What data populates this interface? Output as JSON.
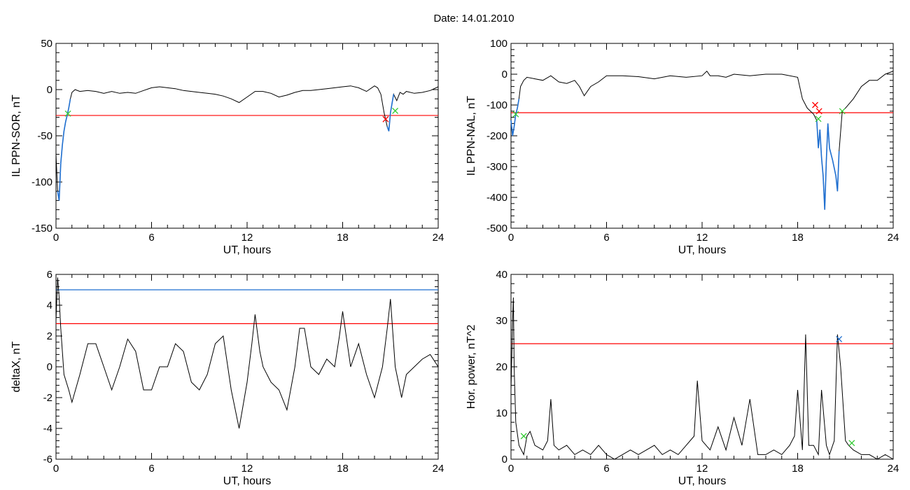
{
  "figure": {
    "title": "Date:  14.01.2010"
  },
  "colors": {
    "axes": "#000000",
    "trace": "#000000",
    "threshold_red": "#ff0000",
    "threshold_blue": "#1f6fd0",
    "highlight_blue": "#1f6fd0",
    "marker_green": "#33cc33",
    "marker_red": "#ff0000"
  },
  "chart_data": [
    {
      "id": "panel-ppn-sor",
      "type": "line",
      "title": "",
      "xlabel": "UT, hours",
      "ylabel": "IL PPN-SOR, nT",
      "xlim": [
        0,
        24
      ],
      "ylim": [
        -150,
        50
      ],
      "xticks": [
        0,
        6,
        12,
        18,
        24
      ],
      "yticks": [
        -150,
        -100,
        -50,
        0,
        50
      ],
      "threshold": [
        {
          "value": -28,
          "color": "red"
        }
      ],
      "series": [
        {
          "x": [
            0.0,
            0.1,
            0.2,
            0.3,
            0.4,
            0.5,
            0.6,
            0.7,
            0.8,
            0.9,
            1.0,
            1.2,
            1.5,
            2.0,
            2.5,
            3.0,
            3.5,
            4.0,
            4.5,
            5.0,
            5.5,
            6.0,
            6.5,
            7.0,
            7.5,
            8.0,
            8.5,
            9.0,
            9.5,
            10.0,
            10.5,
            11.0,
            11.5,
            12.0,
            12.5,
            13.0,
            13.5,
            14.0,
            14.5,
            15.0,
            15.5,
            16.0,
            16.5,
            17.0,
            17.5,
            18.0,
            18.5,
            19.0,
            19.5,
            20.0,
            20.2,
            20.4,
            20.6,
            20.8,
            20.9,
            21.0,
            21.2,
            21.4,
            21.6,
            21.8,
            22.0,
            22.5,
            23.0,
            23.5,
            24.0
          ],
          "y": [
            -70,
            -110,
            -120,
            -80,
            -60,
            -45,
            -35,
            -28,
            -20,
            -10,
            -3,
            0,
            -2,
            -1,
            -2,
            -4,
            -2,
            -4,
            -3,
            -4,
            -1,
            2,
            3,
            2,
            1,
            -1,
            -2,
            -3,
            -4,
            -5,
            -7,
            -10,
            -14,
            -8,
            -2,
            -2,
            -4,
            -8,
            -6,
            -3,
            -1,
            -1,
            0,
            1,
            2,
            3,
            4,
            2,
            -2,
            4,
            2,
            -5,
            -25,
            -40,
            -45,
            -25,
            -5,
            -12,
            -3,
            -5,
            -2,
            -4,
            -3,
            -1,
            3
          ]
        }
      ],
      "highlight_x_ranges": [
        [
          0.1,
          0.9
        ],
        [
          20.8,
          21.3
        ]
      ],
      "markers": [
        {
          "x": 0.75,
          "y": -26,
          "color": "green",
          "symbol": "x"
        },
        {
          "x": 21.3,
          "y": -23,
          "color": "green",
          "symbol": "x"
        },
        {
          "x": 20.7,
          "y": -32,
          "color": "red",
          "symbol": "x"
        }
      ]
    },
    {
      "id": "panel-ppn-nal",
      "type": "line",
      "title": "",
      "xlabel": "UT, hours",
      "ylabel": "IL PPN-NAL, nT",
      "xlim": [
        0,
        24
      ],
      "ylim": [
        -500,
        100
      ],
      "xticks": [
        0,
        6,
        12,
        18,
        24
      ],
      "yticks": [
        -500,
        -400,
        -300,
        -200,
        -100,
        0,
        100
      ],
      "threshold": [
        {
          "value": -125,
          "color": "red"
        }
      ],
      "series": [
        {
          "x": [
            0.0,
            0.1,
            0.2,
            0.3,
            0.4,
            0.5,
            0.6,
            0.8,
            1.0,
            1.5,
            2.0,
            2.5,
            3.0,
            3.5,
            4.0,
            4.3,
            4.6,
            5.0,
            5.5,
            6.0,
            7.0,
            8.0,
            9.0,
            10.0,
            11.0,
            12.0,
            12.3,
            12.5,
            13.0,
            13.5,
            14.0,
            15.0,
            16.0,
            17.0,
            18.0,
            18.3,
            18.6,
            19.0,
            19.2,
            19.3,
            19.4,
            19.5,
            19.6,
            19.7,
            19.8,
            19.9,
            20.0,
            20.2,
            20.4,
            20.5,
            20.6,
            20.8,
            21.0,
            21.5,
            22.0,
            22.5,
            23.0,
            23.5,
            24.0
          ],
          "y": [
            -150,
            -200,
            -170,
            -130,
            -110,
            -80,
            -40,
            -20,
            -10,
            -15,
            -20,
            -5,
            -25,
            -30,
            -20,
            -40,
            -70,
            -40,
            -25,
            -5,
            -5,
            -8,
            -15,
            -5,
            -10,
            -5,
            10,
            -5,
            -5,
            -10,
            0,
            -5,
            0,
            0,
            -10,
            -80,
            -110,
            -130,
            -150,
            -240,
            -180,
            -270,
            -330,
            -440,
            -280,
            -160,
            -240,
            -280,
            -330,
            -380,
            -250,
            -120,
            -110,
            -80,
            -40,
            -20,
            -20,
            0,
            10
          ]
        }
      ],
      "highlight_x_ranges": [
        [
          0.0,
          0.5
        ],
        [
          19.1,
          20.7
        ]
      ],
      "markers": [
        {
          "x": 0.3,
          "y": -130,
          "color": "green",
          "symbol": "x"
        },
        {
          "x": 19.3,
          "y": -145,
          "color": "green",
          "symbol": "x"
        },
        {
          "x": 20.8,
          "y": -120,
          "color": "green",
          "symbol": "x"
        },
        {
          "x": 19.1,
          "y": -100,
          "color": "red",
          "symbol": "x"
        },
        {
          "x": 19.35,
          "y": -120,
          "color": "red",
          "symbol": "x"
        }
      ]
    },
    {
      "id": "panel-deltax",
      "type": "line",
      "title": "",
      "xlabel": "UT, hours",
      "ylabel": "deltaX, nT",
      "xlim": [
        0,
        24
      ],
      "ylim": [
        -6,
        6
      ],
      "xticks": [
        0,
        6,
        12,
        18,
        24
      ],
      "yticks": [
        -6,
        -4,
        -2,
        0,
        2,
        4,
        6
      ],
      "threshold": [
        {
          "value": 5.0,
          "color": "blue"
        },
        {
          "value": 2.8,
          "color": "red"
        }
      ],
      "series": [
        {
          "x": [
            0.0,
            0.1,
            0.2,
            0.3,
            0.5,
            0.8,
            1.0,
            1.5,
            2.0,
            2.5,
            3.0,
            3.5,
            4.0,
            4.5,
            5.0,
            5.5,
            6.0,
            6.5,
            7.0,
            7.5,
            8.0,
            8.5,
            9.0,
            9.5,
            10.0,
            10.5,
            11.0,
            11.5,
            12.0,
            12.3,
            12.5,
            12.8,
            13.0,
            13.5,
            14.0,
            14.5,
            15.0,
            15.3,
            15.6,
            16.0,
            16.5,
            17.0,
            17.5,
            17.8,
            18.0,
            18.5,
            19.0,
            19.5,
            20.0,
            20.5,
            20.8,
            21.0,
            21.3,
            21.7,
            22.0,
            22.5,
            23.0,
            23.5,
            24.0
          ],
          "y": [
            3.0,
            5.8,
            4.5,
            2.5,
            -0.5,
            -1.5,
            -2.3,
            -0.5,
            1.5,
            1.5,
            0.0,
            -1.5,
            0.0,
            1.8,
            1.0,
            -1.5,
            -1.5,
            0.0,
            0.0,
            1.5,
            1.0,
            -1.0,
            -1.5,
            -0.5,
            1.5,
            2.0,
            -1.5,
            -4.0,
            -1.0,
            1.5,
            3.4,
            1.0,
            0.0,
            -1.0,
            -1.5,
            -2.8,
            0.0,
            2.5,
            2.5,
            0.0,
            -0.5,
            0.5,
            0.0,
            2.0,
            3.6,
            0.0,
            1.5,
            -0.5,
            -2.0,
            0.0,
            2.5,
            4.4,
            0.0,
            -2.0,
            -0.5,
            0.0,
            0.5,
            0.8,
            0.0
          ]
        }
      ],
      "highlight_x_ranges": [],
      "markers": []
    },
    {
      "id": "panel-hor-power",
      "type": "line",
      "title": "",
      "xlabel": "UT, hours",
      "ylabel": "Hor. power, nT^2",
      "xlim": [
        0,
        24
      ],
      "ylim": [
        0,
        40
      ],
      "xticks": [
        0,
        6,
        12,
        18,
        24
      ],
      "yticks": [
        0,
        10,
        20,
        30,
        40
      ],
      "threshold": [
        {
          "value": 25,
          "color": "red"
        }
      ],
      "series": [
        {
          "x": [
            0.0,
            0.1,
            0.15,
            0.2,
            0.3,
            0.5,
            0.8,
            1.0,
            1.2,
            1.5,
            2.0,
            2.3,
            2.5,
            2.7,
            3.0,
            3.5,
            4.0,
            4.5,
            5.0,
            5.5,
            6.0,
            6.5,
            7.0,
            7.5,
            8.0,
            8.5,
            9.0,
            9.5,
            10.0,
            10.5,
            11.0,
            11.5,
            11.7,
            12.0,
            12.5,
            13.0,
            13.5,
            14.0,
            14.5,
            15.0,
            15.5,
            16.0,
            16.5,
            17.0,
            17.5,
            17.8,
            18.0,
            18.3,
            18.5,
            18.7,
            19.0,
            19.3,
            19.5,
            19.8,
            20.0,
            20.3,
            20.5,
            20.7,
            21.0,
            21.2,
            21.5,
            22.0,
            22.5,
            23.0,
            23.5,
            24.0
          ],
          "y": [
            15,
            30,
            35,
            20,
            8,
            3,
            1,
            5,
            6,
            3,
            2,
            4,
            13,
            3,
            2,
            3,
            1,
            2,
            1,
            3,
            1,
            0,
            1,
            2,
            1,
            2,
            3,
            1,
            2,
            1,
            3,
            5,
            17,
            4,
            2,
            7,
            2,
            9,
            3,
            13,
            1,
            1,
            2,
            1,
            3,
            5,
            15,
            2,
            27,
            3,
            3,
            1,
            15,
            3,
            1,
            4,
            27,
            20,
            4,
            3,
            2,
            1,
            1,
            0,
            1,
            0
          ]
        }
      ],
      "highlight_x_ranges": [],
      "markers": [
        {
          "x": 0.8,
          "y": 5,
          "color": "green",
          "symbol": "x"
        },
        {
          "x": 21.4,
          "y": 3.5,
          "color": "green",
          "symbol": "x"
        },
        {
          "x": 20.6,
          "y": 26,
          "color": "blue",
          "symbol": "x"
        }
      ]
    }
  ]
}
